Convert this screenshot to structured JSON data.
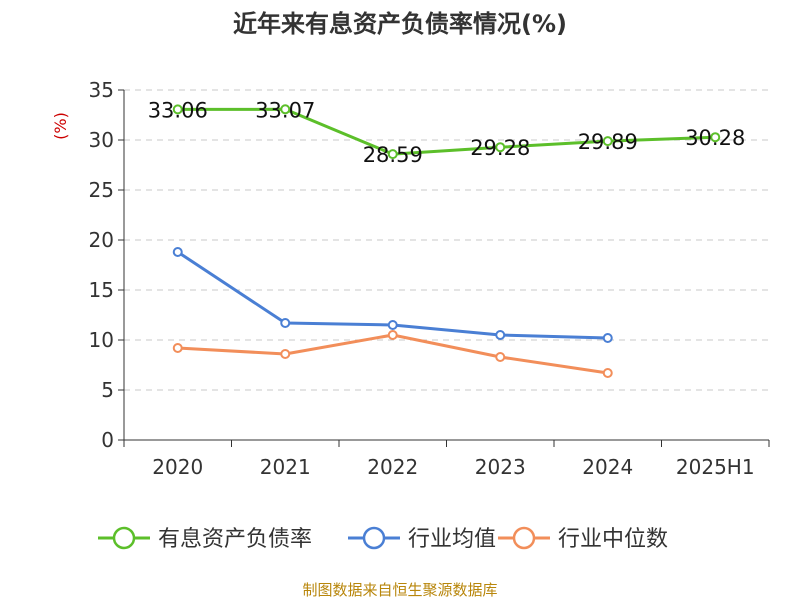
{
  "chart_data": {
    "type": "line",
    "title": "近年来有息资产负债率情况(%)",
    "ylabel": "(%)",
    "categories": [
      "2020",
      "2021",
      "2022",
      "2023",
      "2024",
      "2025H1"
    ],
    "ylim": [
      0,
      35
    ],
    "yticks": [
      0,
      5,
      10,
      15,
      20,
      25,
      30,
      35
    ],
    "grid": true,
    "legend_position": "bottom",
    "series": [
      {
        "name": "有息资产负债率",
        "color": "#5cbf2a",
        "values": [
          33.06,
          33.07,
          28.59,
          29.28,
          29.89,
          30.28
        ],
        "labels": [
          "33.06",
          "33.07",
          "28.59",
          "29.28",
          "29.89",
          "30.28"
        ]
      },
      {
        "name": "行业均值",
        "color": "#4a7fd4",
        "values": [
          18.8,
          11.7,
          11.5,
          10.5,
          10.2,
          null
        ]
      },
      {
        "name": "行业中位数",
        "color": "#f28e5a",
        "values": [
          9.2,
          8.6,
          10.5,
          8.3,
          6.7,
          null
        ]
      }
    ]
  },
  "footer": {
    "source": "制图数据来自恒生聚源数据库"
  }
}
